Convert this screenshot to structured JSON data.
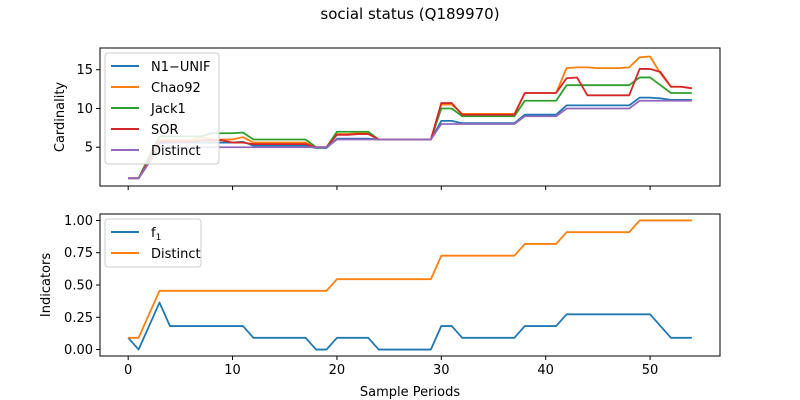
{
  "figure": {
    "title": "social status (Q189970)",
    "xlabel": "Sample Periods"
  },
  "chart_data": [
    {
      "type": "line",
      "ylabel": "Cardinality",
      "xlim": [
        -2.7,
        56.7
      ],
      "ylim": [
        0,
        17.8
      ],
      "xticks": [
        0,
        10,
        20,
        30,
        40,
        50
      ],
      "yticks": [
        5,
        10,
        15
      ],
      "yticklabels": [
        "5",
        "10",
        "15"
      ],
      "show_xticklabels": false,
      "grid": false,
      "legend": "upper left",
      "x": [
        0,
        1,
        2,
        3,
        4,
        5,
        6,
        7,
        8,
        9,
        10,
        11,
        12,
        13,
        14,
        15,
        16,
        17,
        18,
        19,
        20,
        21,
        22,
        23,
        24,
        25,
        26,
        27,
        28,
        29,
        30,
        31,
        32,
        33,
        34,
        35,
        36,
        37,
        38,
        39,
        40,
        41,
        42,
        43,
        44,
        45,
        46,
        47,
        48,
        49,
        50,
        51,
        52,
        53,
        54
      ],
      "series": [
        {
          "name": "N1−UNIF",
          "color": "#1f77b4",
          "values": [
            1,
            1,
            3,
            5.5,
            5.6,
            5.6,
            5.6,
            5.6,
            5.6,
            5.6,
            5.6,
            5.7,
            5.2,
            5.2,
            5.2,
            5.2,
            5.2,
            5.2,
            4.9,
            4.9,
            6.1,
            6.1,
            6.1,
            6.1,
            6.0,
            6.0,
            6.0,
            6.0,
            6.0,
            6.0,
            8.4,
            8.4,
            8.1,
            8.1,
            8.1,
            8.1,
            8.1,
            8.1,
            9.2,
            9.2,
            9.2,
            9.2,
            10.4,
            10.4,
            10.4,
            10.4,
            10.4,
            10.4,
            10.4,
            11.4,
            11.4,
            11.3,
            11.1,
            11.1,
            11.1
          ]
        },
        {
          "name": "Chao92",
          "color": "#ff7f0e",
          "values": [
            1,
            1,
            3.5,
            5.9,
            5.9,
            5.9,
            5.9,
            6.3,
            6.0,
            6.0,
            6.0,
            6.3,
            5.6,
            5.6,
            5.6,
            5.6,
            5.6,
            5.6,
            5.0,
            5.0,
            6.7,
            6.7,
            6.8,
            6.8,
            6.0,
            6.0,
            6.0,
            6.0,
            6.0,
            6.0,
            10.5,
            10.5,
            9.3,
            9.3,
            9.3,
            9.3,
            9.3,
            9.3,
            12.0,
            12.0,
            12.0,
            12.0,
            15.2,
            15.3,
            15.3,
            15.2,
            15.2,
            15.2,
            15.3,
            16.6,
            16.7,
            14.5,
            12.8,
            12.8,
            12.6
          ]
        },
        {
          "name": "Jack1",
          "color": "#2ca02c",
          "values": [
            1,
            1,
            3.8,
            6.4,
            6.4,
            6.4,
            6.4,
            6.4,
            6.8,
            6.8,
            6.8,
            6.9,
            6.0,
            6.0,
            6.0,
            6.0,
            6.0,
            6.0,
            5.0,
            5.0,
            7.0,
            7.0,
            7.0,
            7.0,
            6.0,
            6.0,
            6.0,
            6.0,
            6.0,
            6.0,
            10.0,
            10.0,
            9.0,
            9.0,
            9.0,
            9.0,
            9.0,
            9.0,
            11.0,
            11.0,
            11.0,
            11.0,
            13.0,
            13.0,
            13.0,
            13.0,
            13.0,
            13.0,
            13.0,
            14.0,
            14.0,
            13.0,
            12.0,
            12.0,
            12.0
          ]
        },
        {
          "name": "SOR",
          "color": "#d62728",
          "values": [
            1,
            1,
            3.3,
            5.7,
            5.7,
            5.7,
            5.7,
            5.9,
            5.9,
            5.9,
            5.6,
            5.6,
            5.4,
            5.4,
            5.4,
            5.4,
            5.4,
            5.4,
            5.0,
            5.0,
            6.6,
            6.6,
            6.7,
            6.7,
            6.0,
            6.0,
            6.0,
            6.0,
            6.0,
            6.0,
            10.7,
            10.7,
            9.2,
            9.2,
            9.2,
            9.2,
            9.2,
            9.2,
            12.0,
            12.0,
            12.0,
            12.0,
            13.9,
            14.0,
            11.7,
            11.7,
            11.7,
            11.7,
            11.7,
            15.1,
            15.1,
            14.7,
            12.8,
            12.8,
            12.6
          ]
        },
        {
          "name": "Distinct",
          "color": "#9467bd",
          "values": [
            1,
            1,
            3,
            5,
            5,
            5,
            5,
            5,
            5,
            5,
            5,
            5,
            5,
            5,
            5,
            5,
            5,
            5,
            5,
            5,
            6,
            6,
            6,
            6,
            6,
            6,
            6,
            6,
            6,
            6,
            8,
            8,
            8,
            8,
            8,
            8,
            8,
            8,
            9,
            9,
            9,
            9,
            10,
            10,
            10,
            10,
            10,
            10,
            10,
            11,
            11,
            11,
            11,
            11,
            11
          ]
        }
      ]
    },
    {
      "type": "line",
      "ylabel": "Indicators",
      "xlim": [
        -2.7,
        56.7
      ],
      "ylim": [
        -0.05,
        1.05
      ],
      "xticks": [
        0,
        10,
        20,
        30,
        40,
        50
      ],
      "xticklabels": [
        "0",
        "10",
        "20",
        "30",
        "40",
        "50"
      ],
      "yticks": [
        0,
        0.25,
        0.5,
        0.75,
        1.0
      ],
      "yticklabels": [
        "0.00",
        "0.25",
        "0.50",
        "0.75",
        "1.00"
      ],
      "show_xticklabels": true,
      "grid": false,
      "legend": "upper left",
      "x": [
        0,
        1,
        2,
        3,
        4,
        5,
        6,
        7,
        8,
        9,
        10,
        11,
        12,
        13,
        14,
        15,
        16,
        17,
        18,
        19,
        20,
        21,
        22,
        23,
        24,
        25,
        26,
        27,
        28,
        29,
        30,
        31,
        32,
        33,
        34,
        35,
        36,
        37,
        38,
        39,
        40,
        41,
        42,
        43,
        44,
        45,
        46,
        47,
        48,
        49,
        50,
        51,
        52,
        53,
        54
      ],
      "series": [
        {
          "name": "f",
          "name_sub": "1",
          "color": "#1f77b4",
          "values": [
            0.091,
            0,
            0.182,
            0.364,
            0.182,
            0.182,
            0.182,
            0.182,
            0.182,
            0.182,
            0.182,
            0.182,
            0.091,
            0.091,
            0.091,
            0.091,
            0.091,
            0.091,
            0,
            0,
            0.091,
            0.091,
            0.091,
            0.091,
            0,
            0,
            0,
            0,
            0,
            0,
            0.182,
            0.182,
            0.091,
            0.091,
            0.091,
            0.091,
            0.091,
            0.091,
            0.182,
            0.182,
            0.182,
            0.182,
            0.273,
            0.273,
            0.273,
            0.273,
            0.273,
            0.273,
            0.273,
            0.273,
            0.273,
            0.182,
            0.091,
            0.091,
            0.091
          ]
        },
        {
          "name": "Distinct",
          "color": "#ff7f0e",
          "values": [
            0.091,
            0.091,
            0.273,
            0.455,
            0.455,
            0.455,
            0.455,
            0.455,
            0.455,
            0.455,
            0.455,
            0.455,
            0.455,
            0.455,
            0.455,
            0.455,
            0.455,
            0.455,
            0.455,
            0.455,
            0.545,
            0.545,
            0.545,
            0.545,
            0.545,
            0.545,
            0.545,
            0.545,
            0.545,
            0.545,
            0.727,
            0.727,
            0.727,
            0.727,
            0.727,
            0.727,
            0.727,
            0.727,
            0.818,
            0.818,
            0.818,
            0.818,
            0.909,
            0.909,
            0.909,
            0.909,
            0.909,
            0.909,
            0.909,
            1,
            1,
            1,
            1,
            1,
            1
          ]
        }
      ]
    }
  ]
}
